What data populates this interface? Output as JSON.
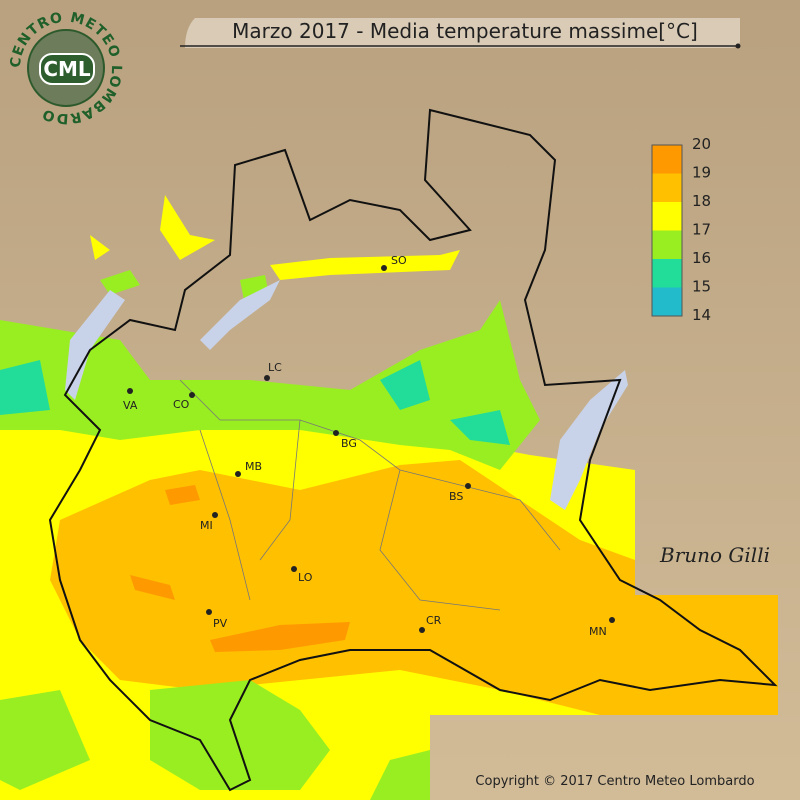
{
  "header": {
    "title": "Marzo 2017 - Media temperature massime[°C]"
  },
  "logo": {
    "ring": "CENTRO METEO LOMBARDO",
    "badge": "CML"
  },
  "legend": {
    "ticks": [
      20,
      19,
      18,
      17,
      16,
      15,
      14
    ],
    "colors": [
      "#ff9900",
      "#ffc000",
      "#ffff00",
      "#99ee22",
      "#22dd99",
      "#22bbcc"
    ]
  },
  "cities": [
    "SO",
    "LC",
    "VA",
    "CO",
    "BG",
    "MB",
    "BS",
    "MI",
    "LO",
    "PV",
    "CR",
    "MN"
  ],
  "signature": "Bruno Gilli",
  "footer": {
    "copyright": "Copyright © 2017 Centro Meteo Lombardo"
  }
}
